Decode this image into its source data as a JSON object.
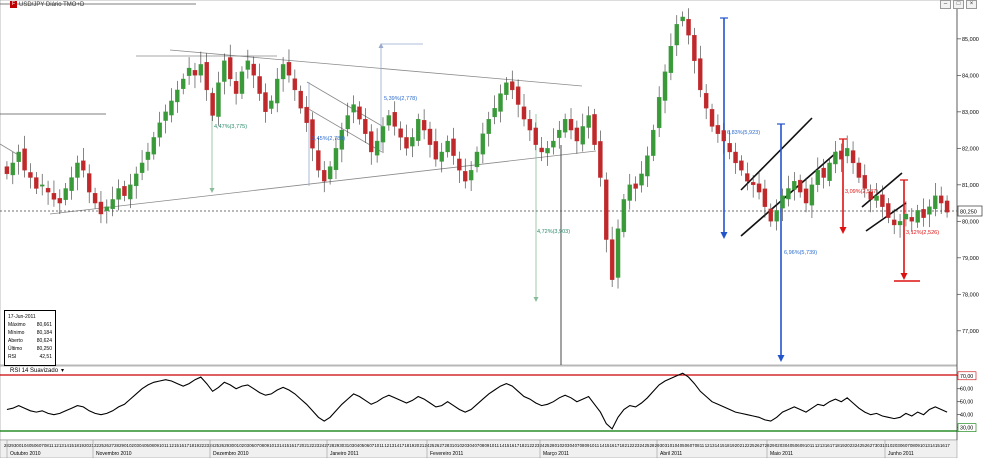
{
  "window": {
    "title": "USD/JPY Diário TMO+D",
    "controls": [
      "–",
      "□",
      "×"
    ]
  },
  "ohlc_panel": {
    "date": "17-Jun-2011",
    "rows": [
      {
        "label": "Máximo",
        "value": "80,661"
      },
      {
        "label": "Mínimo",
        "value": "80,184"
      },
      {
        "label": "Aberto",
        "value": "80,624"
      },
      {
        "label": "Último",
        "value": "80,250"
      },
      {
        "label": "RSI",
        "value": "42,51"
      }
    ]
  },
  "rsi_panel": {
    "title": "RSI 14 Suavizado",
    "dropdown": "▾",
    "ticks": [
      "70,00",
      "60,00",
      "50,00",
      "40,00",
      "30,00"
    ],
    "upper_level": 70,
    "lower_level": 30
  },
  "colors": {
    "up": "#3a9a3a",
    "down": "#c0292b",
    "blue_arrow": "#2255cc",
    "red_arrow": "#dd1111",
    "rsi_upper": "#cc0000",
    "rsi_lower": "#007700",
    "current_price_bg": "#ffffff"
  },
  "chart_data": {
    "type": "candlestick",
    "price_axis": {
      "ticks": [
        "85,000",
        "84,000",
        "83,000",
        "82,000",
        "81,000",
        "80,000",
        "79,000",
        "78,000",
        "77,000"
      ],
      "range": [
        76.2,
        85.9
      ],
      "current_price": "80,250"
    },
    "x_axis": {
      "months": [
        "Outubro 2010",
        "Novembro 2010",
        "Dezembro 2010",
        "Janeiro 2011",
        "Fevereiro 2011",
        "Março 2011",
        "Abril 2011",
        "Maio 2011",
        "Junho 2011"
      ],
      "day_ticks": [
        "28",
        "29",
        "30",
        "01",
        "04",
        "05",
        "06",
        "07",
        "08",
        "11",
        "12",
        "13",
        "14",
        "15",
        "18",
        "19",
        "20",
        "21",
        "22",
        "25",
        "26",
        "27",
        "28",
        "29",
        "01",
        "02",
        "03",
        "04",
        "05",
        "08",
        "09",
        "10",
        "11",
        "12",
        "15",
        "16",
        "17",
        "18",
        "19",
        "22",
        "23",
        "24",
        "25",
        "26",
        "29",
        "30",
        "01",
        "02",
        "03",
        "06",
        "07",
        "08",
        "09",
        "10",
        "13",
        "14",
        "15",
        "16",
        "17",
        "20",
        "21",
        "22",
        "23",
        "24",
        "27",
        "28",
        "29",
        "30",
        "31",
        "03",
        "04",
        "05",
        "06",
        "07",
        "10",
        "11",
        "12",
        "13",
        "14",
        "17",
        "18",
        "19",
        "20",
        "21",
        "24",
        "25",
        "26",
        "27",
        "28",
        "31",
        "01",
        "02",
        "03",
        "04",
        "07",
        "08",
        "09",
        "10",
        "11",
        "14",
        "15",
        "16",
        "17",
        "18",
        "21",
        "22",
        "23",
        "24",
        "25",
        "28",
        "01",
        "02",
        "03",
        "04",
        "07",
        "08",
        "09",
        "10",
        "11",
        "14",
        "15",
        "16",
        "17",
        "18",
        "21",
        "22",
        "23",
        "24",
        "25",
        "28",
        "29",
        "30",
        "31",
        "01",
        "04",
        "05",
        "06",
        "07",
        "08",
        "11",
        "12",
        "13",
        "14",
        "15",
        "18",
        "19",
        "20",
        "21",
        "22",
        "25",
        "26",
        "27",
        "28",
        "29",
        "02",
        "03",
        "04",
        "05",
        "06",
        "09",
        "10",
        "11",
        "12",
        "13",
        "16",
        "17",
        "18",
        "19",
        "20",
        "23",
        "24",
        "25",
        "26",
        "27",
        "30",
        "31",
        "01",
        "02",
        "03",
        "06",
        "07",
        "08",
        "09",
        "10",
        "13",
        "14",
        "15",
        "16",
        "17"
      ]
    },
    "closes": [
      81.3,
      81.6,
      81.9,
      81.4,
      81.2,
      80.9,
      81.0,
      80.8,
      80.6,
      80.5,
      80.9,
      81.2,
      81.6,
      81.4,
      80.8,
      80.5,
      80.2,
      80.4,
      80.6,
      80.9,
      80.7,
      81.0,
      81.3,
      81.6,
      81.9,
      82.3,
      82.7,
      83.0,
      83.3,
      83.6,
      83.9,
      84.2,
      84.0,
      84.3,
      83.6,
      82.9,
      83.8,
      84.4,
      83.9,
      83.5,
      84.1,
      84.4,
      84.0,
      83.5,
      83.0,
      83.3,
      83.9,
      84.3,
      84.0,
      83.6,
      83.1,
      82.7,
      82.0,
      81.4,
      81.1,
      81.5,
      82.0,
      82.5,
      82.9,
      83.2,
      82.8,
      82.4,
      81.9,
      82.2,
      82.6,
      82.9,
      82.6,
      82.3,
      82.0,
      82.3,
      82.8,
      82.5,
      82.1,
      81.7,
      81.9,
      82.2,
      81.8,
      81.4,
      81.1,
      81.4,
      81.9,
      82.4,
      82.8,
      83.1,
      83.5,
      83.8,
      83.6,
      83.2,
      82.8,
      82.5,
      82.1,
      81.9,
      82.0,
      82.2,
      82.5,
      82.8,
      82.5,
      82.2,
      82.6,
      82.9,
      82.1,
      81.2,
      79.5,
      78.4,
      79.8,
      80.6,
      81.0,
      80.9,
      81.3,
      81.8,
      82.5,
      83.4,
      84.1,
      84.8,
      85.4,
      85.6,
      85.1,
      84.4,
      83.6,
      83.1,
      82.6,
      82.4,
      82.2,
      81.9,
      81.6,
      81.4,
      81.1,
      81.0,
      80.8,
      80.4,
      80.0,
      80.3,
      80.7,
      80.9,
      81.1,
      80.8,
      80.5,
      81.0,
      81.4,
      81.2,
      81.6,
      81.9,
      81.7,
      82.0,
      81.6,
      81.2,
      80.9,
      80.6,
      80.7,
      80.4,
      80.1,
      79.9,
      80.0,
      80.2,
      80.0,
      80.3,
      80.1,
      80.4,
      80.7,
      80.5,
      80.25
    ],
    "rsi": [
      44,
      45,
      47,
      45,
      43,
      42,
      43,
      41,
      40,
      41,
      43,
      45,
      47,
      46,
      43,
      41,
      40,
      41,
      43,
      46,
      48,
      52,
      56,
      60,
      63,
      65,
      66,
      67,
      66,
      64,
      62,
      64,
      67,
      69,
      64,
      58,
      61,
      65,
      63,
      60,
      62,
      63,
      60,
      57,
      55,
      56,
      59,
      61,
      59,
      56,
      52,
      48,
      43,
      38,
      35,
      38,
      43,
      48,
      52,
      56,
      54,
      51,
      48,
      50,
      53,
      55,
      53,
      51,
      49,
      51,
      54,
      52,
      49,
      46,
      47,
      50,
      47,
      44,
      42,
      44,
      48,
      52,
      56,
      59,
      62,
      64,
      62,
      58,
      54,
      52,
      49,
      47,
      48,
      50,
      53,
      55,
      53,
      50,
      52,
      54,
      48,
      42,
      33,
      29,
      38,
      44,
      47,
      46,
      49,
      53,
      58,
      63,
      66,
      68,
      70,
      72,
      69,
      64,
      58,
      54,
      50,
      48,
      46,
      44,
      42,
      41,
      40,
      39,
      38,
      36,
      35,
      38,
      42,
      44,
      46,
      44,
      42,
      45,
      48,
      47,
      50,
      52,
      50,
      53,
      49,
      45,
      42,
      40,
      41,
      39,
      38,
      37,
      38,
      41,
      39,
      42,
      40,
      44,
      46,
      44,
      42
    ]
  },
  "annotations": [
    {
      "text": "4,47%(3,775)",
      "color": "#2a8a6a"
    },
    {
      "text": "3,45%(2,788)",
      "color": "#2a6acc"
    },
    {
      "text": "5,39%(2,778)",
      "color": "#2a6acc"
    },
    {
      "text": "4,72%(3,903)",
      "color": "#2a8a6a"
    },
    {
      "text": "6,83%(5,923)",
      "color": "#2a6acc"
    },
    {
      "text": "6,96%(5,739)",
      "color": "#2a6acc"
    },
    {
      "text": "3,09%(2,537)",
      "color": "#dd1111"
    },
    {
      "text": "3,12%(2,526)",
      "color": "#dd1111"
    }
  ]
}
